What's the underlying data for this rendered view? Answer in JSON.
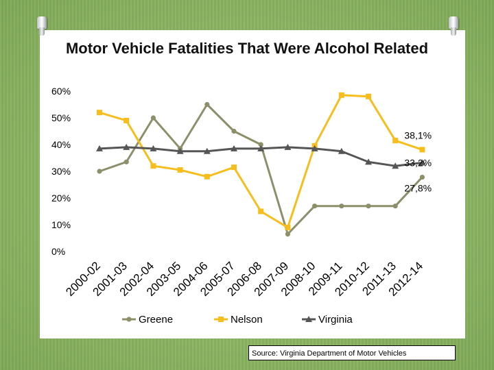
{
  "title": "Motor Vehicle Fatalities That Were Alcohol Related",
  "source": "Source: Virginia Department of Motor Vehicles",
  "chart_data": {
    "type": "line",
    "title": "Motor Vehicle Fatalities That Were Alcohol Related",
    "categories": [
      "2000-02",
      "2001-03",
      "2002-04",
      "2003-05",
      "2004-06",
      "2005-07",
      "2006-08",
      "2007-09",
      "2008-10",
      "2009-11",
      "2010-12",
      "2011-13",
      "2012-14"
    ],
    "series": [
      {
        "name": "Greene",
        "color": "#8c8f6a",
        "marker": "circle",
        "values": [
          30,
          33.5,
          50,
          38.5,
          55,
          45,
          40,
          6.5,
          17,
          17,
          17,
          17,
          27.8
        ]
      },
      {
        "name": "Nelson",
        "color": "#f7bd1c",
        "marker": "square",
        "values": [
          52,
          49,
          32,
          30.5,
          28,
          31.5,
          15,
          9,
          39.5,
          58.5,
          58,
          41.5,
          38.1
        ]
      },
      {
        "name": "Virginia",
        "color": "#555555",
        "marker": "triangle",
        "values": [
          38.5,
          39,
          38.5,
          37.5,
          37.5,
          38.5,
          38.5,
          39,
          38.5,
          37.5,
          33.5,
          32,
          33.2
        ]
      }
    ],
    "end_labels": [
      "38,1%",
      "33,2%",
      "27,8%"
    ],
    "yticks": [
      "0%",
      "10%",
      "20%",
      "30%",
      "40%",
      "50%",
      "60%"
    ],
    "ylim": [
      0,
      60
    ],
    "xlabel": "",
    "ylabel": "",
    "legend": "bottom"
  }
}
